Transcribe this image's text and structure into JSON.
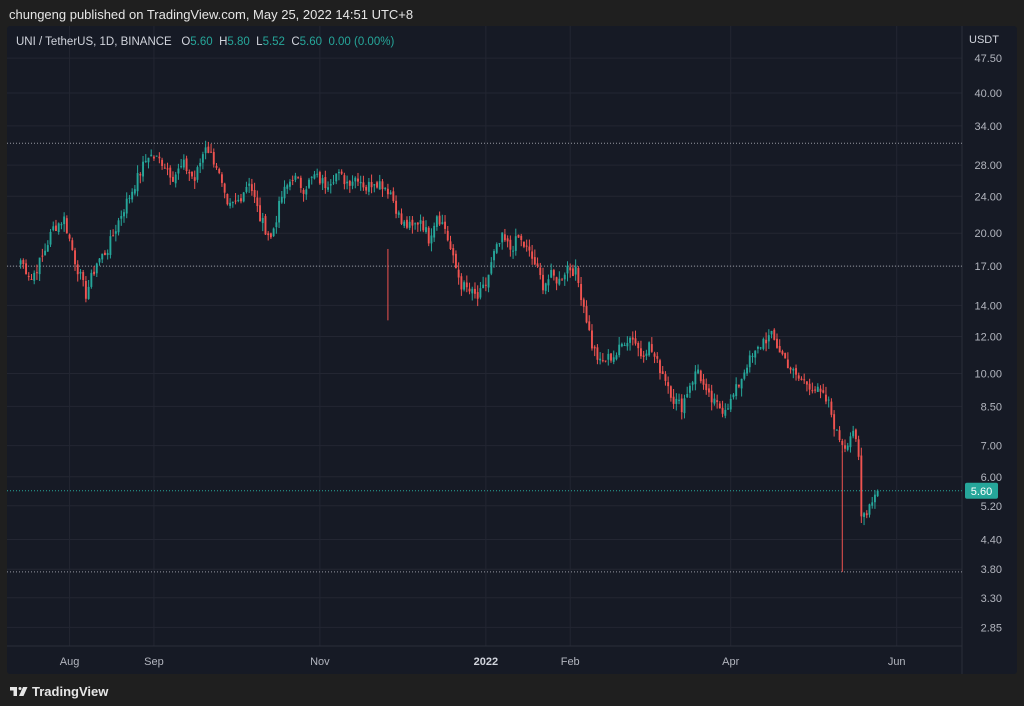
{
  "header": {
    "published": "chungeng published on TradingView.com, May 25, 2022 14:51 UTC+8"
  },
  "symbol": {
    "name": "UNI / TetherUS, 1D, BINANCE",
    "o_label": "O",
    "o": "5.60",
    "h_label": "H",
    "h": "5.80",
    "l_label": "L",
    "l": "5.52",
    "c_label": "C",
    "c": "5.60",
    "change": "0.00 (0.00%)"
  },
  "currency": "USDT",
  "footer": {
    "brand": "TradingView"
  },
  "colors": {
    "up": "#26a69a",
    "down": "#ef5350",
    "bg": "#161a25",
    "grid": "#232632",
    "text": "#b2b5be"
  },
  "chart_data": {
    "type": "candlestick",
    "scale": "log",
    "ylim": [
      2.6,
      53
    ],
    "y_ticks": [
      47.5,
      40,
      34,
      28,
      24,
      20,
      17,
      14,
      12,
      10,
      8.5,
      7,
      6,
      5.2,
      4.4,
      3.8,
      3.3,
      2.85
    ],
    "y_tick_labels": [
      "47.50",
      "40.00",
      "34.00",
      "28.00",
      "24.00",
      "20.00",
      "17.00",
      "14.00",
      "12.00",
      "10.00",
      "8.50",
      "7.00",
      "6.00",
      "5.20",
      "4.40",
      "3.80",
      "3.30",
      "2.85"
    ],
    "x_ticks": [
      {
        "label": "Aug",
        "date": "2021-08-01"
      },
      {
        "label": "Sep",
        "date": "2021-09-01"
      },
      {
        "label": "Nov",
        "date": "2021-11-01"
      },
      {
        "label": "2022",
        "date": "2022-01-01"
      },
      {
        "label": "Feb",
        "date": "2022-02-01"
      },
      {
        "label": "Apr",
        "date": "2022-04-01"
      },
      {
        "label": "Jun",
        "date": "2022-06-01"
      }
    ],
    "last_price": 5.6,
    "horizontal_lines": [
      31.2,
      17.0,
      3.75
    ],
    "date_range": [
      "2021-07-14",
      "2022-05-25"
    ],
    "close_anchors": [
      [
        "2021-07-14",
        17.5
      ],
      [
        "2021-07-18",
        16.0
      ],
      [
        "2021-07-22",
        17.8
      ],
      [
        "2021-07-26",
        20.5
      ],
      [
        "2021-07-30",
        21.5
      ],
      [
        "2021-08-03",
        17.5
      ],
      [
        "2021-08-07",
        14.8
      ],
      [
        "2021-08-11",
        17.3
      ],
      [
        "2021-08-15",
        18.5
      ],
      [
        "2021-08-20",
        22.0
      ],
      [
        "2021-08-25",
        25.5
      ],
      [
        "2021-08-30",
        29.5
      ],
      [
        "2021-09-04",
        28.5
      ],
      [
        "2021-09-08",
        26.5
      ],
      [
        "2021-09-12",
        28.0
      ],
      [
        "2021-09-16",
        26.0
      ],
      [
        "2021-09-20",
        31.0
      ],
      [
        "2021-09-24",
        28.0
      ],
      [
        "2021-09-28",
        22.5
      ],
      [
        "2021-10-02",
        23.5
      ],
      [
        "2021-10-06",
        26.0
      ],
      [
        "2021-10-10",
        21.5
      ],
      [
        "2021-10-14",
        19.5
      ],
      [
        "2021-10-18",
        24.0
      ],
      [
        "2021-10-22",
        26.5
      ],
      [
        "2021-10-26",
        25.0
      ],
      [
        "2021-10-30",
        26.5
      ],
      [
        "2021-11-03",
        25.5
      ],
      [
        "2021-11-07",
        26.8
      ],
      [
        "2021-11-11",
        25.8
      ],
      [
        "2021-11-15",
        26.5
      ],
      [
        "2021-11-18",
        25.0
      ],
      [
        "2021-11-21",
        26.0
      ],
      [
        "2021-11-24",
        25.5
      ],
      [
        "2021-11-27",
        24.5
      ],
      [
        "2021-12-01",
        21.0
      ],
      [
        "2021-12-05",
        20.5
      ],
      [
        "2021-12-08",
        21.5
      ],
      [
        "2021-12-11",
        19.5
      ],
      [
        "2021-12-14",
        22.0
      ],
      [
        "2021-12-17",
        20.5
      ],
      [
        "2021-12-20",
        17.5
      ],
      [
        "2021-12-23",
        15.5
      ],
      [
        "2021-12-26",
        15.0
      ],
      [
        "2021-12-29",
        14.5
      ],
      [
        "2022-01-01",
        15.5
      ],
      [
        "2022-01-04",
        18.0
      ],
      [
        "2022-01-07",
        19.5
      ],
      [
        "2022-01-10",
        18.5
      ],
      [
        "2022-01-13",
        19.5
      ],
      [
        "2022-01-16",
        18.5
      ],
      [
        "2022-01-19",
        17.2
      ],
      [
        "2022-01-22",
        15.5
      ],
      [
        "2022-01-25",
        16.2
      ],
      [
        "2022-01-28",
        15.8
      ],
      [
        "2022-01-31",
        17.0
      ],
      [
        "2022-02-03",
        16.5
      ],
      [
        "2022-02-06",
        14.0
      ],
      [
        "2022-02-09",
        11.5
      ],
      [
        "2022-02-12",
        10.5
      ],
      [
        "2022-02-15",
        10.8
      ],
      [
        "2022-02-18",
        11.0
      ],
      [
        "2022-02-21",
        11.8
      ],
      [
        "2022-02-24",
        12.0
      ],
      [
        "2022-02-27",
        11.0
      ],
      [
        "2022-03-02",
        11.5
      ],
      [
        "2022-03-05",
        10.5
      ],
      [
        "2022-03-08",
        9.8
      ],
      [
        "2022-03-11",
        8.8
      ],
      [
        "2022-03-14",
        8.5
      ],
      [
        "2022-03-17",
        9.5
      ],
      [
        "2022-03-20",
        10.2
      ],
      [
        "2022-03-23",
        9.0
      ],
      [
        "2022-03-26",
        8.6
      ],
      [
        "2022-03-29",
        8.4
      ],
      [
        "2022-04-01",
        8.7
      ],
      [
        "2022-04-04",
        9.5
      ],
      [
        "2022-04-07",
        10.5
      ],
      [
        "2022-04-10",
        11.0
      ],
      [
        "2022-04-13",
        11.8
      ],
      [
        "2022-04-16",
        12.0
      ],
      [
        "2022-04-19",
        11.2
      ],
      [
        "2022-04-22",
        10.5
      ],
      [
        "2022-04-25",
        9.8
      ],
      [
        "2022-04-28",
        9.6
      ],
      [
        "2022-05-01",
        9.4
      ],
      [
        "2022-05-04",
        9.0
      ],
      [
        "2022-05-07",
        8.6
      ],
      [
        "2022-05-10",
        7.4
      ],
      [
        "2022-05-13",
        7.0
      ],
      [
        "2022-05-16",
        7.6
      ],
      [
        "2022-05-18",
        6.5
      ],
      [
        "2022-05-19",
        4.9
      ],
      [
        "2022-05-21",
        5.1
      ],
      [
        "2022-05-23",
        5.4
      ],
      [
        "2022-05-25",
        5.6
      ]
    ]
  }
}
